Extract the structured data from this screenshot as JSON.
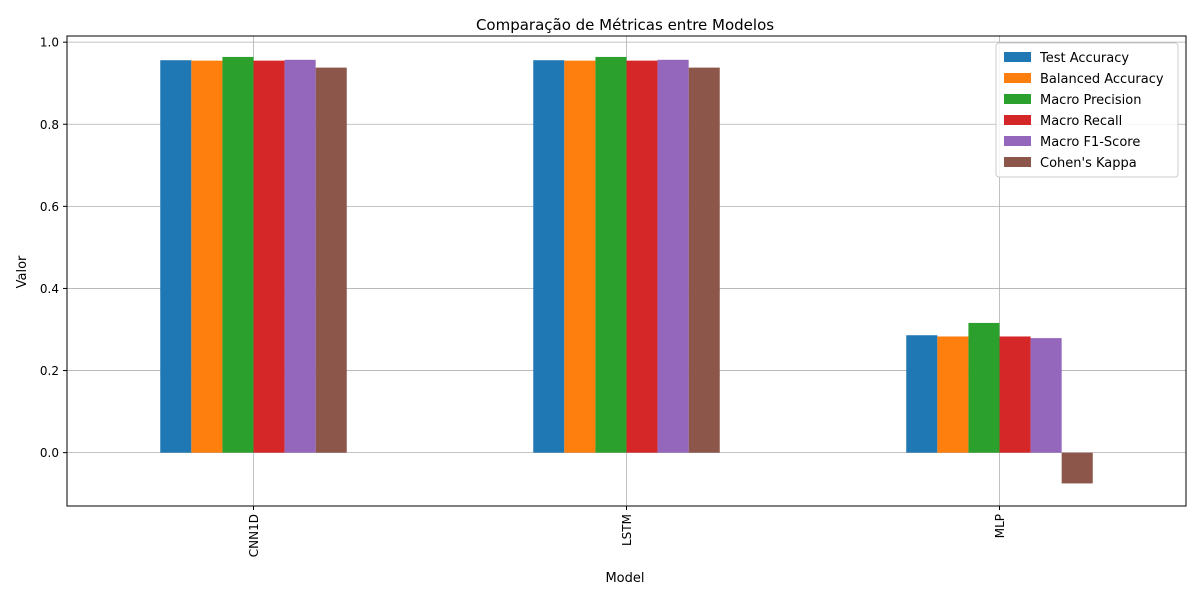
{
  "chart_data": {
    "type": "bar",
    "title": "Comparação de Métricas entre Modelos",
    "xlabel": "Model",
    "ylabel": "Valor",
    "categories": [
      "CNN1D",
      "LSTM",
      "MLP"
    ],
    "ylim": [
      -0.13,
      1.015
    ],
    "yticks": [
      0.0,
      0.2,
      0.4,
      0.6,
      0.8,
      1.0
    ],
    "ytick_labels": [
      "0.0",
      "0.2",
      "0.4",
      "0.6",
      "0.8",
      "1.0"
    ],
    "grid": true,
    "legend_position": "top-right",
    "series": [
      {
        "name": "Test Accuracy",
        "color": "#1f77b4",
        "values": [
          0.956,
          0.956,
          0.286
        ]
      },
      {
        "name": "Balanced Accuracy",
        "color": "#ff7f0e",
        "values": [
          0.955,
          0.955,
          0.283
        ]
      },
      {
        "name": "Macro Precision",
        "color": "#2ca02c",
        "values": [
          0.964,
          0.964,
          0.316
        ]
      },
      {
        "name": "Macro Recall",
        "color": "#d62728",
        "values": [
          0.955,
          0.955,
          0.283
        ]
      },
      {
        "name": "Macro F1-Score",
        "color": "#9467bd",
        "values": [
          0.957,
          0.957,
          0.279
        ]
      },
      {
        "name": "Cohen's Kappa",
        "color": "#8c564b",
        "values": [
          0.938,
          0.938,
          -0.075
        ]
      }
    ]
  }
}
